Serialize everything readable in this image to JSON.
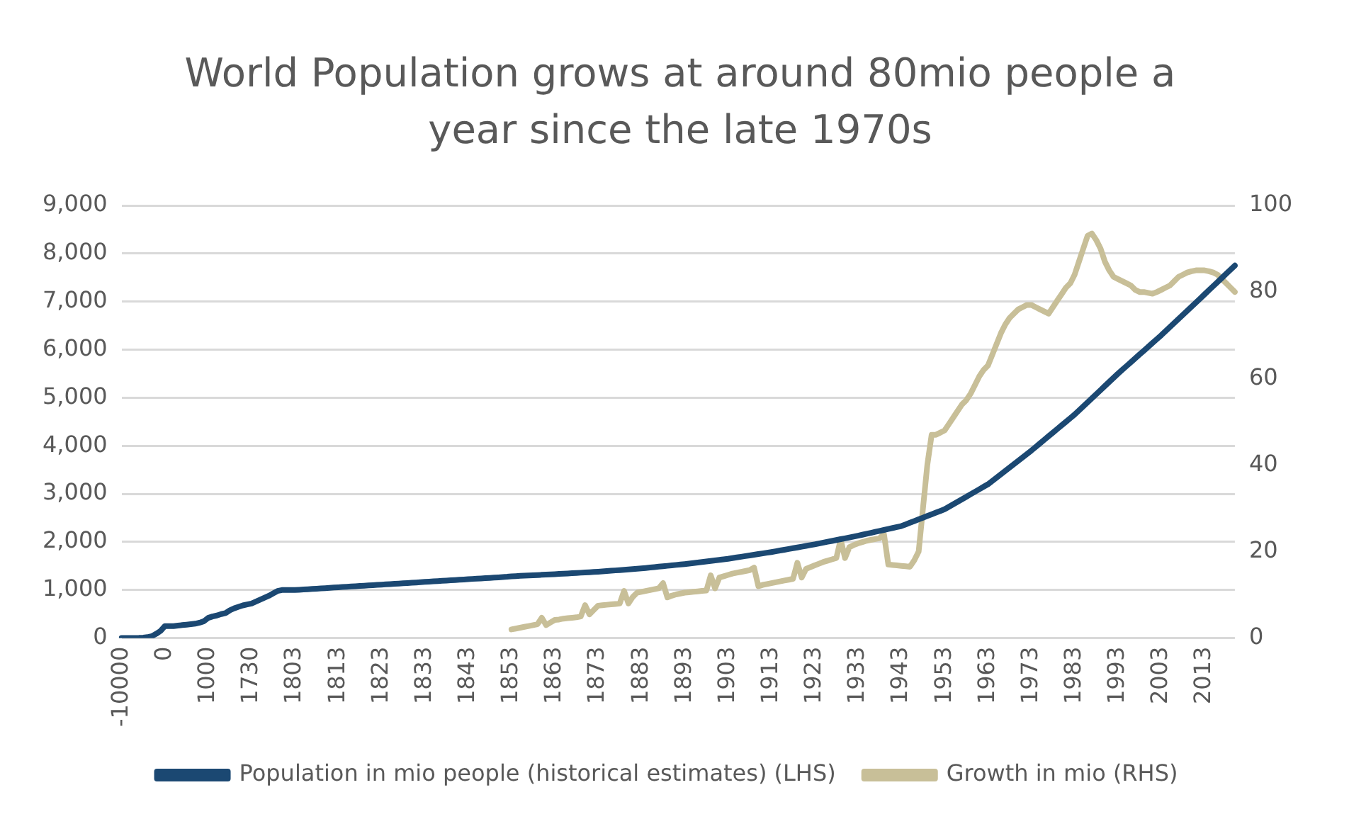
{
  "chart_data": {
    "type": "line",
    "title": "World Population grows at around 80mio people a year since the late 1970s",
    "categories": [
      "-10000",
      null,
      null,
      null,
      null,
      null,
      null,
      null,
      null,
      null,
      "0",
      null,
      null,
      null,
      null,
      null,
      null,
      null,
      null,
      null,
      "1000",
      null,
      null,
      null,
      null,
      null,
      null,
      null,
      null,
      null,
      "1730",
      null,
      null,
      null,
      null,
      null,
      null,
      null,
      null,
      null,
      "1803",
      null,
      null,
      null,
      null,
      null,
      null,
      null,
      null,
      null,
      "1813",
      null,
      null,
      null,
      null,
      null,
      null,
      null,
      null,
      null,
      "1823",
      null,
      null,
      null,
      null,
      null,
      null,
      null,
      null,
      null,
      "1833",
      null,
      null,
      null,
      null,
      null,
      null,
      null,
      null,
      null,
      "1843",
      null,
      null,
      null,
      null,
      null,
      null,
      null,
      null,
      null,
      "1853",
      null,
      null,
      null,
      null,
      null,
      null,
      null,
      null,
      null,
      "1863",
      null,
      null,
      null,
      null,
      null,
      null,
      null,
      null,
      null,
      "1873",
      null,
      null,
      null,
      null,
      null,
      null,
      null,
      null,
      null,
      "1883",
      null,
      null,
      null,
      null,
      null,
      null,
      null,
      null,
      null,
      "1893",
      null,
      null,
      null,
      null,
      null,
      null,
      null,
      null,
      null,
      "1903",
      null,
      null,
      null,
      null,
      null,
      null,
      null,
      null,
      null,
      "1913",
      null,
      null,
      null,
      null,
      null,
      null,
      null,
      null,
      null,
      "1923",
      null,
      null,
      null,
      null,
      null,
      null,
      null,
      null,
      null,
      "1933",
      null,
      null,
      null,
      null,
      null,
      null,
      null,
      null,
      null,
      "1943",
      null,
      null,
      null,
      null,
      null,
      null,
      null,
      null,
      null,
      "1953",
      null,
      null,
      null,
      null,
      null,
      null,
      null,
      null,
      null,
      "1963",
      null,
      null,
      null,
      null,
      null,
      null,
      null,
      null,
      null,
      "1973",
      null,
      null,
      null,
      null,
      null,
      null,
      null,
      null,
      null,
      "1983",
      null,
      null,
      null,
      null,
      null,
      null,
      null,
      null,
      null,
      "1993",
      null,
      null,
      null,
      null,
      null,
      null,
      null,
      null,
      null,
      "2003",
      null,
      null,
      null,
      null,
      null,
      null,
      null,
      null,
      null,
      "2013",
      null,
      null,
      null,
      null,
      null,
      null,
      null
    ],
    "series": [
      {
        "name": "Population in mio people (historical estimates) (LHS)",
        "color": "#1b4872",
        "values": [
          2,
          2,
          3,
          4,
          5,
          10,
          20,
          40,
          90,
          150,
          250,
          250,
          250,
          260,
          270,
          280,
          290,
          300,
          320,
          350,
          420,
          450,
          470,
          500,
          520,
          580,
          620,
          650,
          680,
          700,
          720,
          760,
          800,
          840,
          880,
          930,
          980,
          1000,
          1000,
          1000,
          1000,
          1006,
          1011,
          1017,
          1022,
          1028,
          1034,
          1039,
          1045,
          1051,
          1056,
          1062,
          1067,
          1073,
          1079,
          1084,
          1090,
          1096,
          1101,
          1107,
          1112,
          1118,
          1124,
          1129,
          1135,
          1141,
          1146,
          1152,
          1157,
          1163,
          1169,
          1174,
          1180,
          1186,
          1191,
          1197,
          1202,
          1208,
          1214,
          1219,
          1225,
          1231,
          1236,
          1242,
          1247,
          1253,
          1259,
          1264,
          1270,
          1276,
          1285,
          1289,
          1294,
          1298,
          1303,
          1307,
          1312,
          1316,
          1321,
          1325,
          1330,
          1335,
          1340,
          1345,
          1350,
          1355,
          1360,
          1365,
          1370,
          1375,
          1380,
          1387,
          1394,
          1401,
          1408,
          1415,
          1422,
          1429,
          1436,
          1443,
          1450,
          1459,
          1468,
          1477,
          1486,
          1495,
          1504,
          1513,
          1522,
          1531,
          1540,
          1551,
          1562,
          1573,
          1584,
          1595,
          1606,
          1617,
          1628,
          1639,
          1650,
          1664,
          1678,
          1692,
          1706,
          1720,
          1734,
          1748,
          1762,
          1776,
          1790,
          1806,
          1822,
          1838,
          1854,
          1870,
          1886,
          1902,
          1918,
          1934,
          1950,
          1968,
          1986,
          2004,
          2022,
          2040,
          2058,
          2076,
          2094,
          2112,
          2130,
          2150,
          2170,
          2190,
          2210,
          2230,
          2250,
          2270,
          2290,
          2310,
          2330,
          2365,
          2400,
          2435,
          2470,
          2505,
          2540,
          2575,
          2610,
          2645,
          2680,
          2732,
          2784,
          2836,
          2888,
          2940,
          2992,
          3044,
          3096,
          3148,
          3200,
          3270,
          3340,
          3410,
          3480,
          3550,
          3620,
          3690,
          3760,
          3830,
          3900,
          3975,
          4050,
          4125,
          4200,
          4275,
          4350,
          4425,
          4500,
          4575,
          4650,
          4735,
          4820,
          4905,
          4990,
          5075,
          5160,
          5245,
          5330,
          5415,
          5500,
          5580,
          5660,
          5740,
          5820,
          5900,
          5980,
          6060,
          6140,
          6220,
          6300,
          6385,
          6470,
          6555,
          6640,
          6725,
          6810,
          6895,
          6980,
          7065,
          7150,
          7236,
          7321,
          7407,
          7493,
          7579,
          7664,
          7750
        ]
      },
      {
        "name": "Growth in mio (RHS)",
        "color": "#c8bf98",
        "axis": "y2",
        "values": [
          null,
          null,
          null,
          null,
          null,
          null,
          null,
          null,
          null,
          null,
          null,
          null,
          null,
          null,
          null,
          null,
          null,
          null,
          null,
          null,
          null,
          null,
          null,
          null,
          null,
          null,
          null,
          null,
          null,
          null,
          null,
          null,
          null,
          null,
          null,
          null,
          null,
          null,
          null,
          null,
          null,
          null,
          null,
          null,
          null,
          null,
          null,
          null,
          null,
          null,
          null,
          null,
          null,
          null,
          null,
          null,
          null,
          null,
          null,
          null,
          null,
          null,
          null,
          null,
          null,
          null,
          null,
          null,
          null,
          null,
          null,
          null,
          null,
          null,
          null,
          null,
          null,
          null,
          null,
          null,
          null,
          null,
          null,
          null,
          null,
          null,
          null,
          null,
          null,
          null,
          2,
          2.2,
          2.4,
          2.6,
          2.8,
          3,
          3.2,
          4.7,
          3,
          3.6,
          4.2,
          4.3,
          4.5,
          4.6,
          4.7,
          4.8,
          5,
          7.6,
          5.5,
          6.5,
          7.5,
          7.6,
          7.7,
          7.8,
          7.9,
          8,
          10.9,
          8,
          9.5,
          10.5,
          10.7,
          10.9,
          11.1,
          11.3,
          11.5,
          12.7,
          9.4,
          9.8,
          10.1,
          10.3,
          10.5,
          10.6,
          10.7,
          10.8,
          10.9,
          11,
          14.5,
          11.5,
          14,
          14.3,
          14.6,
          14.9,
          15.1,
          15.3,
          15.5,
          15.7,
          16.3,
          12,
          12.3,
          12.5,
          12.7,
          12.9,
          13.1,
          13.3,
          13.5,
          13.7,
          17.4,
          14,
          16,
          16.4,
          16.8,
          17.2,
          17.6,
          17.9,
          18.2,
          18.5,
          22.8,
          18.5,
          21,
          21.5,
          21.9,
          22.2,
          22.5,
          22.7,
          22.9,
          23.1,
          24,
          17,
          16.9,
          16.8,
          16.7,
          16.6,
          16.5,
          18,
          20,
          30,
          40,
          47,
          47,
          47.5,
          48,
          49.5,
          51,
          52.5,
          54,
          55,
          56.5,
          58.5,
          60.5,
          62,
          63,
          65.5,
          68,
          70.5,
          72.5,
          74,
          75,
          76,
          76.5,
          77,
          77,
          76.5,
          76,
          75.5,
          75,
          76.5,
          78,
          79.5,
          81,
          82,
          84,
          87,
          90,
          93,
          93.5,
          92,
          90,
          87,
          85,
          83.5,
          83,
          82.5,
          82,
          81.5,
          80.5,
          80,
          80,
          79.8,
          79.6,
          80,
          80.5,
          81,
          81.5,
          82.5,
          83.5,
          84,
          84.5,
          84.8,
          85,
          85,
          85,
          84.8,
          84.5,
          84,
          83,
          82,
          81,
          80
        ]
      }
    ],
    "ylim": [
      0,
      9000
    ],
    "yticks": [
      0,
      {
        "value": 1000,
        "label": "1,000"
      },
      {
        "value": 2000,
        "label": "2,000"
      },
      {
        "value": 3000,
        "label": "3,000"
      },
      {
        "value": 4000,
        "label": "4,000"
      },
      {
        "value": 5000,
        "label": "5,000"
      },
      {
        "value": 6000,
        "label": "6,000"
      },
      {
        "value": 7000,
        "label": "7,000"
      },
      {
        "value": 8000,
        "label": "8,000"
      },
      {
        "value": 9000,
        "label": "9,000"
      }
    ],
    "y2lim": [
      0,
      100
    ],
    "y2ticks": [
      0,
      20,
      40,
      60,
      80,
      100
    ],
    "grid": "y",
    "legend": "bottom"
  }
}
